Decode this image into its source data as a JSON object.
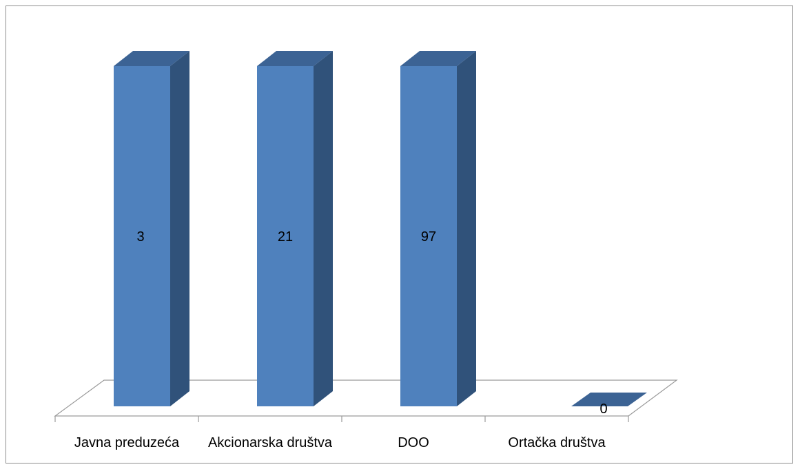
{
  "chart_data": {
    "type": "bar",
    "style": "3d-column",
    "categories": [
      "Javna preduzeća",
      "Akcionarska društva",
      "DOO",
      "Ortačka društva"
    ],
    "series": [
      {
        "values": [
          3,
          21,
          97,
          0
        ]
      }
    ],
    "data_labels": [
      "3",
      "21",
      "97",
      "0"
    ],
    "title": "",
    "xlabel": "",
    "ylabel": "",
    "grid": false,
    "legend": "none"
  },
  "colors": {
    "bar_front": "#4f81bd",
    "bar_side": "#30527a",
    "bar_top": "#3c6394",
    "outline": "#9a9a9a",
    "frame": "#8c8c8c"
  }
}
